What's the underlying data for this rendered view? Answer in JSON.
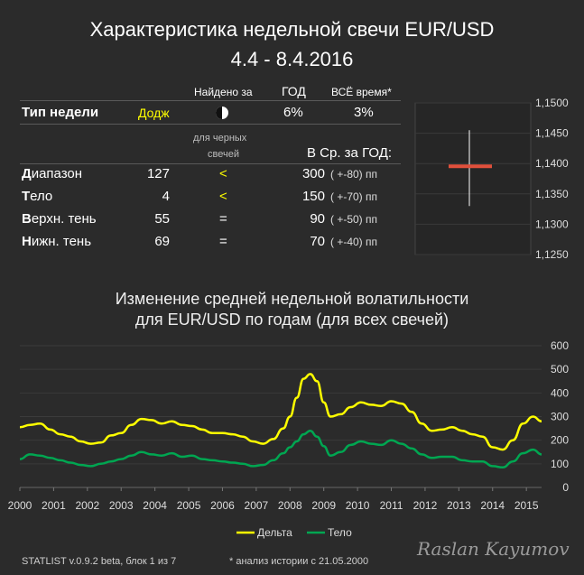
{
  "header": {
    "title_line1": "Характеристика недельной свечи EUR/USD",
    "title_line2": "4.4 - 8.4.2016"
  },
  "table": {
    "col_found": "Найдено за",
    "col_year": "ГОД",
    "col_all": "ВСЁ время*",
    "week_type_label": "Тип недели",
    "week_type_value": "Додж",
    "week_type_icon": "half-moon-icon",
    "found_year": "6%",
    "found_all": "3%",
    "note_line1": "для черных",
    "note_line2": "свечей",
    "avg_label": "В Ср. за ГОД:",
    "rows": [
      {
        "label_first": "Д",
        "label_rest": "иапазон",
        "value": "127",
        "cmp": "<",
        "cmp_yellow": true,
        "avg": "300",
        "delta": "( +-80) пп"
      },
      {
        "label_first": "Т",
        "label_rest": "ело",
        "value": "4",
        "cmp": "<",
        "cmp_yellow": true,
        "avg": "150",
        "delta": "( +-70) пп"
      },
      {
        "label_first": "В",
        "label_rest": "ерхн. тень",
        "value": "55",
        "cmp": "=",
        "cmp_yellow": false,
        "avg": "90",
        "delta": "( +-50) пп"
      },
      {
        "label_first": "Н",
        "label_rest": "ижн. тень",
        "value": "69",
        "cmp": "=",
        "cmp_yellow": false,
        "avg": "70",
        "delta": "( +-40) пп"
      }
    ]
  },
  "candle": {
    "ticks": [
      "1,1500",
      "1,1450",
      "1,1400",
      "1,1350",
      "1,1300",
      "1,1250"
    ],
    "tick_values": [
      1.15,
      1.145,
      1.14,
      1.135,
      1.13,
      1.125
    ],
    "high": 1.1455,
    "low": 1.133,
    "open": 1.1397,
    "close": 1.1394,
    "body_color": "#e0503c",
    "wick_color": "#ffffff"
  },
  "volatility": {
    "title_line1": "Изменение средней недельной волатильности",
    "title_line2": "для EUR/USD по годам (для всех свечей)"
  },
  "chart_data": {
    "type": "line",
    "ylim": [
      0,
      600
    ],
    "xlim": [
      2000,
      2015.45
    ],
    "yticks": [
      "600",
      "500",
      "400",
      "300",
      "200",
      "100",
      "0"
    ],
    "ytick_values": [
      600,
      500,
      400,
      300,
      200,
      100,
      0
    ],
    "xticks": [
      "2000",
      "2001",
      "2002",
      "2003",
      "2004",
      "2005",
      "2006",
      "2007",
      "2008",
      "2009",
      "2010",
      "2011",
      "2012",
      "2013",
      "2014",
      "2015"
    ],
    "xtick_values": [
      2000,
      2001,
      2002,
      2003,
      2004,
      2005,
      2006,
      2007,
      2008,
      2009,
      2010,
      2011,
      2012,
      2013,
      2014,
      2015
    ],
    "legend_position": "bottom",
    "series": [
      {
        "name": "Дельта",
        "color": "#ffff00",
        "x": [
          2000,
          2000.3,
          2000.6,
          2000.9,
          2001.2,
          2001.5,
          2001.8,
          2002.1,
          2002.4,
          2002.7,
          2003.0,
          2003.3,
          2003.6,
          2003.9,
          2004.2,
          2004.5,
          2004.8,
          2005.1,
          2005.4,
          2005.7,
          2006.0,
          2006.3,
          2006.6,
          2006.9,
          2007.2,
          2007.5,
          2007.8,
          2008.0,
          2008.2,
          2008.4,
          2008.6,
          2008.8,
          2009.0,
          2009.2,
          2009.5,
          2009.8,
          2010.1,
          2010.4,
          2010.7,
          2011.0,
          2011.3,
          2011.6,
          2011.9,
          2012.2,
          2012.5,
          2012.8,
          2013.1,
          2013.4,
          2013.7,
          2014.0,
          2014.3,
          2014.6,
          2014.9,
          2015.2,
          2015.45
        ],
        "y": [
          255,
          265,
          270,
          245,
          225,
          215,
          195,
          185,
          190,
          220,
          230,
          265,
          290,
          285,
          270,
          280,
          265,
          260,
          245,
          230,
          230,
          225,
          215,
          195,
          185,
          205,
          250,
          300,
          380,
          460,
          480,
          450,
          360,
          300,
          310,
          340,
          360,
          350,
          345,
          365,
          355,
          320,
          270,
          240,
          245,
          255,
          240,
          225,
          215,
          170,
          160,
          200,
          270,
          300,
          280
        ]
      },
      {
        "name": "Тело",
        "color": "#00a651",
        "x": [
          2000,
          2000.3,
          2000.6,
          2000.9,
          2001.2,
          2001.5,
          2001.8,
          2002.1,
          2002.4,
          2002.7,
          2003.0,
          2003.3,
          2003.6,
          2003.9,
          2004.2,
          2004.5,
          2004.8,
          2005.1,
          2005.4,
          2005.7,
          2006.0,
          2006.3,
          2006.6,
          2006.9,
          2007.2,
          2007.5,
          2007.8,
          2008.0,
          2008.2,
          2008.4,
          2008.6,
          2008.8,
          2009.0,
          2009.2,
          2009.5,
          2009.8,
          2010.1,
          2010.4,
          2010.7,
          2011.0,
          2011.3,
          2011.6,
          2011.9,
          2012.2,
          2012.5,
          2012.8,
          2013.1,
          2013.4,
          2013.7,
          2014.0,
          2014.3,
          2014.6,
          2014.9,
          2015.2,
          2015.45
        ],
        "y": [
          120,
          140,
          135,
          125,
          115,
          105,
          95,
          90,
          100,
          110,
          120,
          135,
          150,
          140,
          135,
          145,
          130,
          135,
          120,
          115,
          110,
          105,
          100,
          90,
          95,
          115,
          145,
          170,
          195,
          225,
          240,
          215,
          175,
          135,
          150,
          180,
          195,
          185,
          180,
          200,
          185,
          165,
          140,
          125,
          130,
          130,
          115,
          110,
          110,
          90,
          85,
          110,
          145,
          160,
          140
        ]
      }
    ]
  },
  "footer": {
    "version": "STATLIST v.0.9.2 beta, блок 1 из 7",
    "history_note": "* анализ истории с  21.05.2000",
    "signature": "Raslan Kayumov"
  }
}
